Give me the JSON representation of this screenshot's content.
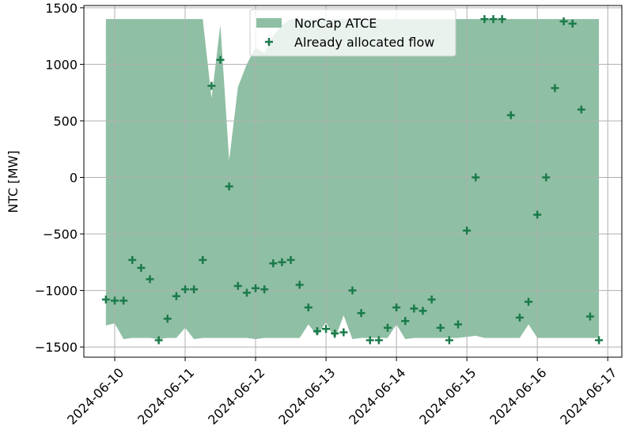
{
  "chart_data": {
    "type": "area-scatter",
    "y_label": "NTC [MW]",
    "x": [
      -0.125,
      0,
      0.125,
      0.25,
      0.375,
      0.5,
      0.625,
      0.75,
      0.875,
      1,
      1.125,
      1.25,
      1.375,
      1.5,
      1.625,
      1.75,
      1.875,
      2,
      2.125,
      2.25,
      2.375,
      2.5,
      2.625,
      2.75,
      2.875,
      3,
      3.125,
      3.25,
      3.375,
      3.5,
      3.625,
      3.75,
      3.875,
      4,
      4.125,
      4.25,
      4.375,
      4.5,
      4.625,
      4.75,
      4.875,
      5,
      5.125,
      5.25,
      5.375,
      5.5,
      5.625,
      5.75,
      5.875,
      6,
      6.125,
      6.25,
      6.375,
      6.5,
      6.625,
      6.75,
      6.875
    ],
    "series": [
      {
        "name": "NorCap ATCE",
        "kind": "band",
        "color": "#8fbfa4",
        "upper": [
          1400,
          1400,
          1400,
          1400,
          1400,
          1400,
          1400,
          1400,
          1400,
          1400,
          1400,
          1400,
          700,
          1350,
          150,
          800,
          1000,
          1150,
          1100,
          1250,
          1350,
          1400,
          1400,
          1400,
          1400,
          1400,
          1400,
          1400,
          1400,
          1400,
          1400,
          1400,
          1400,
          1400,
          1400,
          1400,
          1400,
          1400,
          1400,
          1400,
          1400,
          1400,
          1400,
          1400,
          1400,
          1400,
          1400,
          1400,
          1400,
          1400,
          1400,
          1400,
          1400,
          1400,
          1400,
          1400,
          1400
        ],
        "lower": [
          -1310,
          -1290,
          -1430,
          -1420,
          -1420,
          -1420,
          -1430,
          -1420,
          -1420,
          -1330,
          -1430,
          -1420,
          -1420,
          -1420,
          -1420,
          -1420,
          -1420,
          -1430,
          -1420,
          -1420,
          -1420,
          -1420,
          -1420,
          -1300,
          -1400,
          -1280,
          -1430,
          -1220,
          -1430,
          -1420,
          -1420,
          -1420,
          -1420,
          -1300,
          -1430,
          -1420,
          -1420,
          -1420,
          -1420,
          -1420,
          -1420,
          -1410,
          -1400,
          -1420,
          -1420,
          -1420,
          -1420,
          -1420,
          -1300,
          -1420,
          -1420,
          -1420,
          -1420,
          -1420,
          -1420,
          -1420,
          -1420
        ]
      },
      {
        "name": "Already allocated flow",
        "kind": "plus",
        "color": "#1b7a4a",
        "values": [
          -1080,
          -1090,
          -1090,
          -730,
          -800,
          -900,
          -1440,
          -1250,
          -1050,
          -990,
          -990,
          -730,
          810,
          1040,
          -80,
          -960,
          -1020,
          -980,
          -990,
          -760,
          -750,
          -730,
          -950,
          -1150,
          -1360,
          -1340,
          -1380,
          -1370,
          -1000,
          -1200,
          -1440,
          -1440,
          -1330,
          -1150,
          -1270,
          -1160,
          -1180,
          -1080,
          -1330,
          -1440,
          -1300,
          -470,
          0,
          1400,
          1400,
          1400,
          550,
          -1240,
          -1100,
          -330,
          0,
          790,
          1380,
          1360,
          600,
          -1230,
          -1440
        ]
      }
    ],
    "xlim": [
      -0.438,
      7.2
    ],
    "ylim": [
      -1590,
      1520
    ],
    "xticks": [
      {
        "value": 0,
        "label": "2024-06-10"
      },
      {
        "value": 1,
        "label": "2024-06-11"
      },
      {
        "value": 2,
        "label": "2024-06-12"
      },
      {
        "value": 3,
        "label": "2024-06-13"
      },
      {
        "value": 4,
        "label": "2024-06-14"
      },
      {
        "value": 5,
        "label": "2024-06-15"
      },
      {
        "value": 6,
        "label": "2024-06-16"
      },
      {
        "value": 7,
        "label": "2024-06-17"
      }
    ],
    "yticks": [
      {
        "value": -1500,
        "label": "−1500"
      },
      {
        "value": -1000,
        "label": "−1000"
      },
      {
        "value": -500,
        "label": "−500"
      },
      0,
      500,
      1000,
      1500
    ],
    "grid": true,
    "legend": "upper center"
  }
}
